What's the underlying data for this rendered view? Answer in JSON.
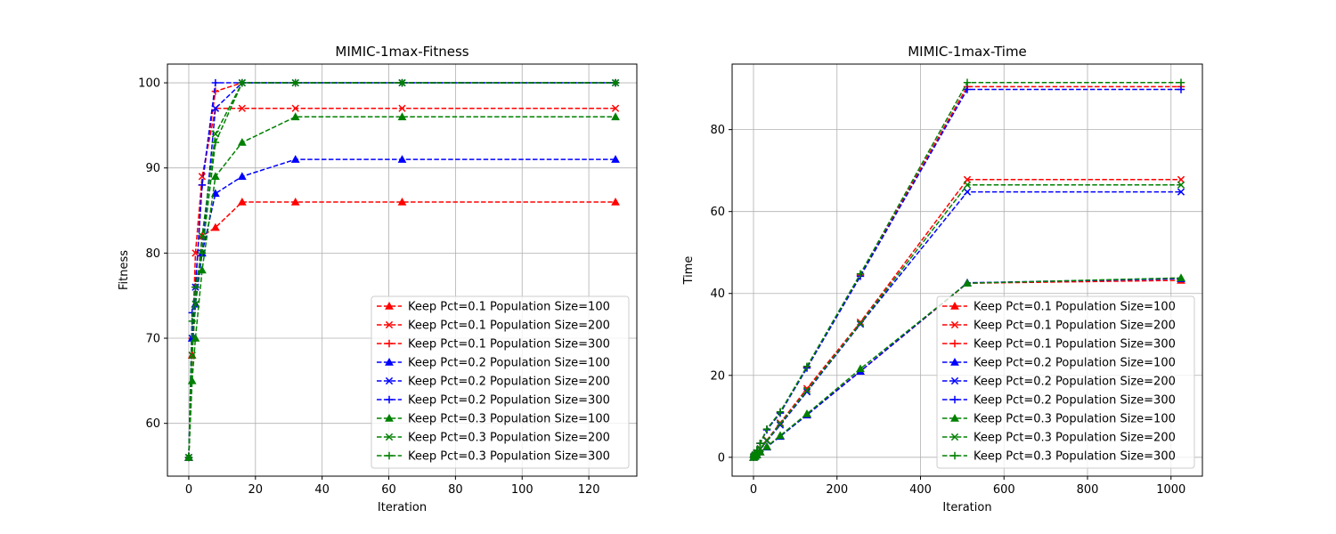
{
  "chart_data": [
    {
      "type": "line",
      "title": "MIMIC-1max-Fitness",
      "xlabel": "Iteration",
      "ylabel": "Fitness",
      "xlim": [
        -6.4,
        134.4
      ],
      "ylim": [
        53.8,
        102.2
      ],
      "xticks": [
        0,
        20,
        40,
        60,
        80,
        100,
        120
      ],
      "yticks": [
        60,
        70,
        80,
        90,
        100
      ],
      "grid": true,
      "legend_position": "lower-right",
      "x": [
        0,
        1,
        2,
        4,
        8,
        16,
        32,
        64,
        128
      ],
      "series": [
        {
          "name": "Keep Pct=0.1 Population Size=100",
          "color": "#ff0000",
          "marker": "triangle",
          "values": [
            56,
            68,
            74,
            82,
            83,
            86,
            86,
            86,
            86
          ]
        },
        {
          "name": "Keep Pct=0.1 Population Size=200",
          "color": "#ff0000",
          "marker": "x",
          "values": [
            56,
            68,
            80,
            89,
            97,
            97,
            97,
            97,
            97
          ]
        },
        {
          "name": "Keep Pct=0.1 Population Size=300",
          "color": "#ff0000",
          "marker": "plus",
          "values": [
            56,
            70,
            76,
            88,
            99,
            100,
            100,
            100,
            100
          ]
        },
        {
          "name": "Keep Pct=0.2 Population Size=100",
          "color": "#0000ff",
          "marker": "triangle",
          "values": [
            56,
            70,
            74,
            80,
            87,
            89,
            91,
            91,
            91
          ]
        },
        {
          "name": "Keep Pct=0.2 Population Size=200",
          "color": "#0000ff",
          "marker": "x",
          "values": [
            56,
            70,
            76,
            80,
            97,
            100,
            100,
            100,
            100
          ]
        },
        {
          "name": "Keep Pct=0.2 Population Size=300",
          "color": "#0000ff",
          "marker": "plus",
          "values": [
            56,
            73,
            76,
            88,
            100,
            100,
            100,
            100,
            100
          ]
        },
        {
          "name": "Keep Pct=0.3 Population Size=100",
          "color": "#008000",
          "marker": "triangle",
          "values": [
            56,
            65,
            70,
            78,
            89,
            93,
            96,
            96,
            96
          ]
        },
        {
          "name": "Keep Pct=0.3 Population Size=200",
          "color": "#008000",
          "marker": "x",
          "values": [
            56,
            68,
            74,
            82,
            94,
            100,
            100,
            100,
            100
          ]
        },
        {
          "name": "Keep Pct=0.3 Population Size=300",
          "color": "#008000",
          "marker": "plus",
          "values": [
            56,
            72,
            76,
            80,
            93,
            100,
            100,
            100,
            100
          ]
        }
      ]
    },
    {
      "type": "line",
      "title": "MIMIC-1max-Time",
      "xlabel": "Iteration",
      "ylabel": "Time",
      "xlim": [
        -51.2,
        1075.2
      ],
      "ylim": [
        -4.6,
        96
      ],
      "xticks": [
        0,
        200,
        400,
        600,
        800,
        1000
      ],
      "yticks": [
        0,
        20,
        40,
        60,
        80
      ],
      "grid": true,
      "legend_position": "lower-right",
      "x": [
        0,
        1,
        2,
        4,
        8,
        16,
        32,
        64,
        128,
        256,
        512,
        1024
      ],
      "series": [
        {
          "name": "Keep Pct=0.1 Population Size=100",
          "color": "#ff0000",
          "marker": "triangle",
          "values": [
            0,
            0.1,
            0.2,
            0.3,
            0.6,
            1.3,
            2.6,
            5.2,
            10.5,
            21,
            42.5,
            43.2
          ]
        },
        {
          "name": "Keep Pct=0.1 Population Size=200",
          "color": "#ff0000",
          "marker": "x",
          "values": [
            0,
            0.2,
            0.3,
            0.6,
            1.1,
            2.1,
            4.2,
            8.4,
            16.8,
            33,
            67.8,
            67.8
          ]
        },
        {
          "name": "Keep Pct=0.1 Population Size=300",
          "color": "#ff0000",
          "marker": "plus",
          "values": [
            0,
            0.3,
            0.5,
            0.9,
            1.7,
            3.4,
            6.8,
            11,
            22,
            44.5,
            90.5,
            90.5
          ]
        },
        {
          "name": "Keep Pct=0.2 Population Size=100",
          "color": "#0000ff",
          "marker": "triangle",
          "values": [
            0,
            0.1,
            0.2,
            0.3,
            0.6,
            1.3,
            2.5,
            5.1,
            10.3,
            21,
            42.6,
            43.6
          ]
        },
        {
          "name": "Keep Pct=0.2 Population Size=200",
          "color": "#0000ff",
          "marker": "x",
          "values": [
            0,
            0.2,
            0.3,
            0.6,
            1.0,
            2.0,
            4.0,
            7.9,
            16,
            32.5,
            64.8,
            64.8
          ]
        },
        {
          "name": "Keep Pct=0.2 Population Size=300",
          "color": "#0000ff",
          "marker": "plus",
          "values": [
            0,
            0.3,
            0.5,
            0.9,
            1.7,
            3.4,
            6.7,
            10.8,
            21.8,
            44.2,
            89.8,
            89.8
          ]
        },
        {
          "name": "Keep Pct=0.3 Population Size=100",
          "color": "#008000",
          "marker": "triangle",
          "values": [
            0,
            0.1,
            0.2,
            0.3,
            0.6,
            1.3,
            2.6,
            5.3,
            10.6,
            21.6,
            42.5,
            43.8
          ]
        },
        {
          "name": "Keep Pct=0.3 Population Size=200",
          "color": "#008000",
          "marker": "x",
          "values": [
            0,
            0.2,
            0.3,
            0.6,
            1.1,
            2.1,
            4.1,
            8.2,
            16.3,
            32.7,
            66.5,
            66.5
          ]
        },
        {
          "name": "Keep Pct=0.3 Population Size=300",
          "color": "#008000",
          "marker": "plus",
          "values": [
            0,
            0.3,
            0.5,
            0.9,
            1.7,
            3.4,
            6.9,
            11.1,
            22.2,
            44.8,
            91.5,
            91.5
          ]
        }
      ]
    }
  ]
}
